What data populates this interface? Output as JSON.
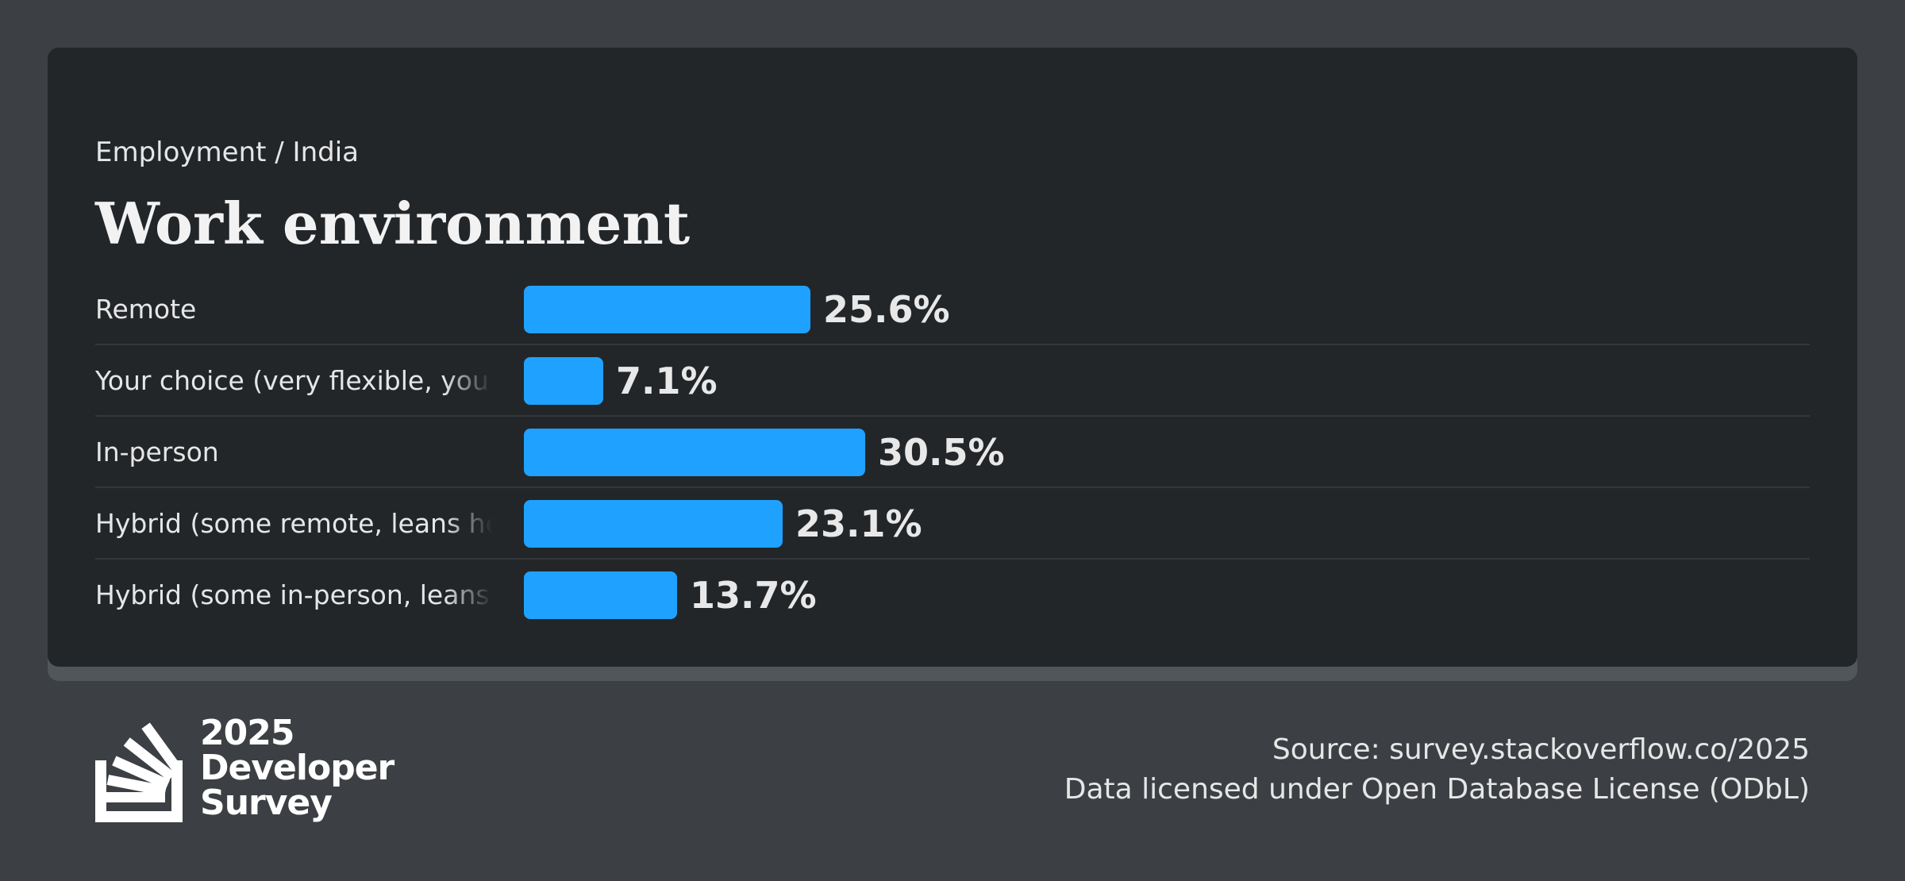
{
  "header": {
    "breadcrumb": "Employment / India",
    "title": "Work environment"
  },
  "chart_data": {
    "type": "bar",
    "orientation": "horizontal",
    "title": "Work environment",
    "categories": [
      "Remote",
      "Your choice (very flexible, you",
      "In-person",
      "Hybrid (some remote, leans he",
      "Hybrid (some in-person, leans"
    ],
    "values": [
      25.6,
      7.1,
      30.5,
      23.1,
      13.7
    ],
    "value_labels": [
      "25.6%",
      "7.1%",
      "30.5%",
      "23.1%",
      "13.7%"
    ],
    "unit": "%",
    "xlim": [
      0,
      100
    ],
    "grid": false,
    "bar_color": "#1fa2ff"
  },
  "logo": {
    "line1": "2025",
    "line2": "Developer",
    "line3": "Survey"
  },
  "footer": {
    "source": "Source: survey.stackoverflow.co/2025",
    "license": "Data licensed under Open Database License (ODbL)"
  },
  "colors": {
    "background": "#3c4044",
    "card": "#232629",
    "bar": "#1fa2ff",
    "text": "#e6e6e6"
  }
}
